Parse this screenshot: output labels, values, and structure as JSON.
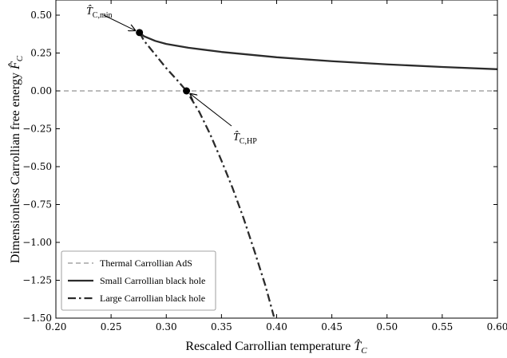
{
  "chart_data": {
    "type": "line",
    "title": "",
    "xlabel": "Rescaled Carrollian temperature",
    "xlabel_symbol": "T̂",
    "xlabel_sub": "C",
    "ylabel": "Dimensionless Carrollian free energy",
    "ylabel_symbol": "F̂",
    "ylabel_sub": "C",
    "xlim": [
      0.2,
      0.6
    ],
    "ylim": [
      -1.5,
      0.6
    ],
    "xticks": [
      0.2,
      0.25,
      0.3,
      0.35,
      0.4,
      0.45,
      0.5,
      0.55,
      0.6
    ],
    "xtick_labels": [
      "0.20",
      "0.25",
      "0.30",
      "0.35",
      "0.40",
      "0.45",
      "0.50",
      "0.55",
      "0.60"
    ],
    "yticks": [
      -1.5,
      -1.25,
      -1.0,
      -0.75,
      -0.5,
      -0.25,
      0.0,
      0.25,
      0.5
    ],
    "ytick_labels": [
      "−1.50",
      "−1.25",
      "−1.00",
      "−0.75",
      "−0.50",
      "−0.25",
      "0.00",
      "0.25",
      "0.50"
    ],
    "grid": false,
    "legend_position": "bottom-left",
    "series": [
      {
        "name": "Thermal Carrollian AdS",
        "style": "dashed",
        "color": "#777777",
        "x": [
          0.2,
          0.6
        ],
        "y": [
          0.0,
          0.0
        ]
      },
      {
        "name": "Small Carrollian black hole",
        "style": "solid",
        "color": "#2b2b2b",
        "x": [
          0.2757,
          0.28,
          0.29,
          0.3,
          0.32,
          0.35,
          0.4,
          0.45,
          0.5,
          0.55,
          0.6
        ],
        "y": [
          0.385,
          0.36,
          0.33,
          0.31,
          0.285,
          0.257,
          0.222,
          0.196,
          0.175,
          0.158,
          0.143
        ]
      },
      {
        "name": "Large Carrollian black hole",
        "style": "dash-dot",
        "color": "#2b2b2b",
        "x": [
          0.2757,
          0.28,
          0.29,
          0.3,
          0.31,
          0.3183,
          0.33,
          0.34,
          0.35,
          0.36,
          0.37,
          0.38,
          0.39,
          0.3975
        ],
        "y": [
          0.385,
          0.33,
          0.24,
          0.15,
          0.07,
          0.0,
          -0.14,
          -0.29,
          -0.46,
          -0.64,
          -0.84,
          -1.06,
          -1.29,
          -1.49
        ]
      }
    ],
    "points": [
      {
        "name": "T_C,min",
        "x": 0.2757,
        "y": 0.385
      },
      {
        "name": "T_C,HP",
        "x": 0.3183,
        "y": 0.0
      }
    ],
    "annotations": [
      {
        "symbol": "T̂",
        "sub": "C,min",
        "point_x": 0.2757,
        "point_y": 0.385
      },
      {
        "symbol": "T̂",
        "sub": "C,HP",
        "point_x": 0.3183,
        "point_y": 0.0
      }
    ],
    "legend": {
      "entries": [
        {
          "label": "Thermal Carrollian AdS",
          "style": "dashed"
        },
        {
          "label": "Small Carrollian black hole",
          "style": "solid"
        },
        {
          "label": "Large Carrollian black hole",
          "style": "dash-dot"
        }
      ]
    }
  }
}
